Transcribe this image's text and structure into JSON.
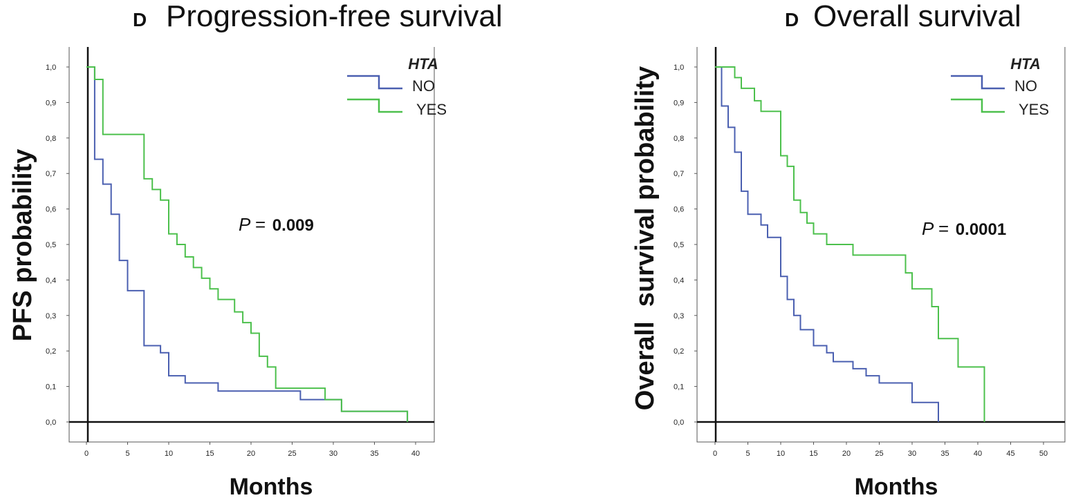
{
  "chart_data": [
    {
      "type": "line",
      "panel_letter": "D",
      "title": "Progression-free survival",
      "xlabel": "Months",
      "ylabel": "PFS probability",
      "xlim": [
        0,
        42
      ],
      "ylim": [
        0,
        1
      ],
      "x_ticks": [
        "0",
        "5",
        "10",
        "15",
        "20",
        "25",
        "30",
        "35",
        "40"
      ],
      "y_ticks": [
        "0,0",
        "0,1",
        "0,2",
        "0,3",
        "0,4",
        "0,5",
        "0,6",
        "0,7",
        "0,8",
        "0,9",
        "1,0"
      ],
      "legend": {
        "title": "HTA",
        "position": "top-right"
      },
      "annotation": {
        "p_label": "P =",
        "p_value": "0.009"
      },
      "series": [
        {
          "name": "NO",
          "color": "#4a5fb0",
          "step_points": [
            [
              0,
              1.0
            ],
            [
              1,
              0.74
            ],
            [
              2,
              0.67
            ],
            [
              3,
              0.585
            ],
            [
              4,
              0.455
            ],
            [
              5,
              0.37
            ],
            [
              7,
              0.215
            ],
            [
              9,
              0.195
            ],
            [
              10,
              0.13
            ],
            [
              12,
              0.11
            ],
            [
              16,
              0.087
            ],
            [
              26,
              0.063
            ],
            [
              30,
              0.063
            ],
            [
              31,
              0.03
            ],
            [
              39,
              0.03
            ],
            [
              39,
              0.0
            ]
          ]
        },
        {
          "name": "YES",
          "color": "#4cc04c",
          "step_points": [
            [
              0,
              1.0
            ],
            [
              1,
              0.965
            ],
            [
              2,
              0.81
            ],
            [
              7,
              0.685
            ],
            [
              8,
              0.655
            ],
            [
              9,
              0.625
            ],
            [
              10,
              0.53
            ],
            [
              11,
              0.5
            ],
            [
              12,
              0.465
            ],
            [
              13,
              0.435
            ],
            [
              14,
              0.405
            ],
            [
              15,
              0.375
            ],
            [
              16,
              0.345
            ],
            [
              18,
              0.31
            ],
            [
              19,
              0.28
            ],
            [
              20,
              0.25
            ],
            [
              21,
              0.185
            ],
            [
              22,
              0.155
            ],
            [
              23,
              0.095
            ],
            [
              29,
              0.063
            ],
            [
              30,
              0.063
            ],
            [
              31,
              0.03
            ],
            [
              39,
              0.03
            ],
            [
              39,
              0.0
            ]
          ]
        }
      ]
    },
    {
      "type": "line",
      "panel_letter": "D",
      "title": "Overall survival",
      "xlabel": "Months",
      "ylabel": "Overall  survival probability",
      "xlim": [
        0,
        52
      ],
      "ylim": [
        0,
        1
      ],
      "x_ticks": [
        "0",
        "5",
        "10",
        "15",
        "20",
        "25",
        "30",
        "35",
        "40",
        "45",
        "50"
      ],
      "y_ticks": [
        "0,0",
        "0,1",
        "0,2",
        "0,3",
        "0,4",
        "0,5",
        "0,6",
        "0,7",
        "0,8",
        "0,9",
        "1,0"
      ],
      "legend": {
        "title": "HTA",
        "position": "top-right"
      },
      "annotation": {
        "p_label": "P =",
        "p_value": "0.0001"
      },
      "series": [
        {
          "name": "NO",
          "color": "#4a5fb0",
          "step_points": [
            [
              0,
              1.0
            ],
            [
              1,
              0.89
            ],
            [
              2,
              0.83
            ],
            [
              3,
              0.76
            ],
            [
              4,
              0.65
            ],
            [
              5,
              0.585
            ],
            [
              6,
              0.585
            ],
            [
              7,
              0.555
            ],
            [
              8,
              0.52
            ],
            [
              10,
              0.41
            ],
            [
              11,
              0.345
            ],
            [
              12,
              0.3
            ],
            [
              13,
              0.26
            ],
            [
              15,
              0.215
            ],
            [
              17,
              0.195
            ],
            [
              18,
              0.17
            ],
            [
              21,
              0.15
            ],
            [
              23,
              0.13
            ],
            [
              25,
              0.11
            ],
            [
              29,
              0.11
            ],
            [
              30,
              0.055
            ],
            [
              34,
              0.055
            ],
            [
              34,
              0.0
            ]
          ]
        },
        {
          "name": "YES",
          "color": "#4cc04c",
          "step_points": [
            [
              0,
              1.0
            ],
            [
              2,
              1.0
            ],
            [
              3,
              0.97
            ],
            [
              4,
              0.94
            ],
            [
              6,
              0.905
            ],
            [
              7,
              0.875
            ],
            [
              9,
              0.875
            ],
            [
              10,
              0.75
            ],
            [
              11,
              0.72
            ],
            [
              12,
              0.625
            ],
            [
              13,
              0.59
            ],
            [
              14,
              0.56
            ],
            [
              15,
              0.53
            ],
            [
              17,
              0.5
            ],
            [
              21,
              0.47
            ],
            [
              29,
              0.47
            ],
            [
              29,
              0.42
            ],
            [
              30,
              0.375
            ],
            [
              33,
              0.325
            ],
            [
              34,
              0.235
            ],
            [
              37,
              0.155
            ],
            [
              41,
              0.155
            ],
            [
              41,
              0.0
            ]
          ]
        }
      ]
    }
  ]
}
